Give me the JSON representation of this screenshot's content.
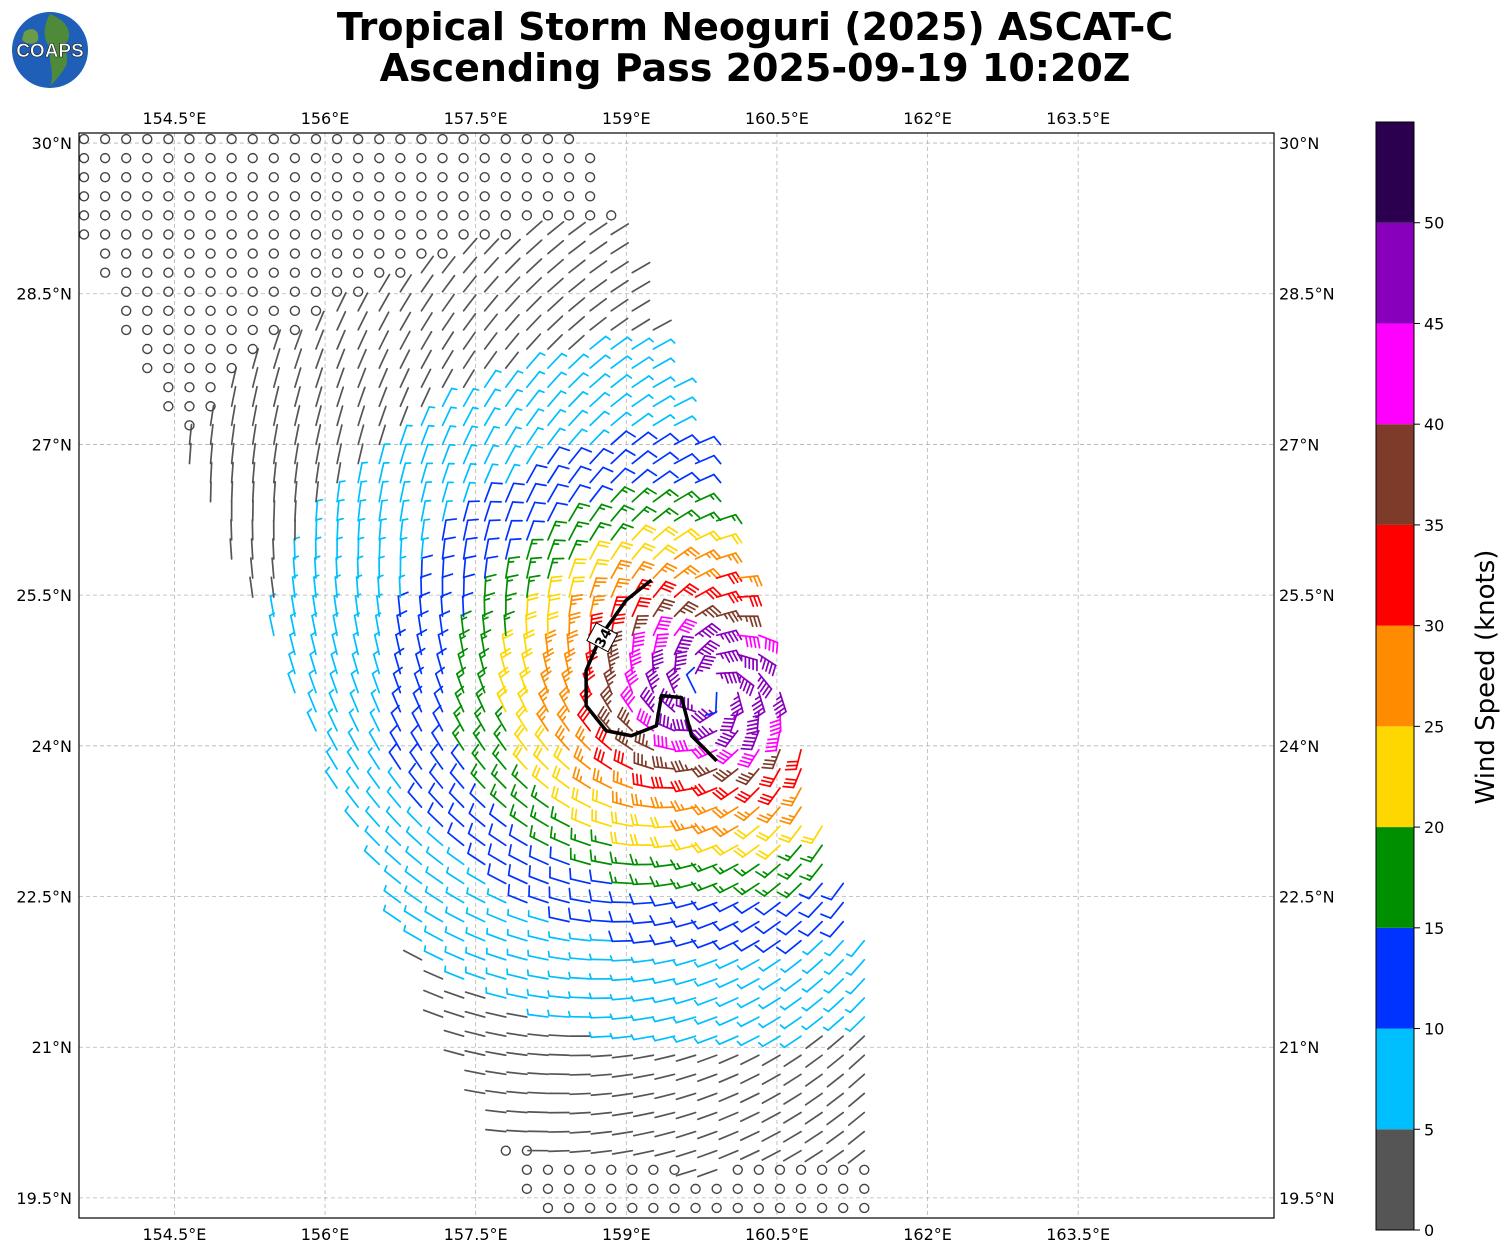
{
  "header": {
    "line1": "Tropical Storm Neoguri (2025) ASCAT-C",
    "line2": "Ascending Pass 2025-09-19 10:20Z"
  },
  "logo": {
    "text": "COAPS",
    "ocean_color": "#1f5fb8",
    "land_color": "#4f8a3a"
  },
  "map": {
    "lon_range": [
      153.55,
      165.45
    ],
    "lat_range": [
      19.3,
      30.1
    ],
    "lon_ticks": [
      "154.5°E",
      "156°E",
      "157.5°E",
      "159°E",
      "160.5°E",
      "162°E",
      "163.5°E"
    ],
    "lon_tick_values": [
      154.5,
      156,
      157.5,
      159,
      160.5,
      162,
      163.5
    ],
    "lat_ticks": [
      "19.5°N",
      "21°N",
      "22.5°N",
      "24°N",
      "25.5°N",
      "27°N",
      "28.5°N",
      "30°N"
    ],
    "lat_tick_values": [
      19.5,
      21,
      22.5,
      24,
      25.5,
      27,
      28.5,
      30
    ],
    "grid": true,
    "storm_center": {
      "lon": 159.85,
      "lat": 24.55
    },
    "contour_label": "34",
    "contour_34kt": [
      [
        159.25,
        25.65
      ],
      [
        159.0,
        25.45
      ],
      [
        158.75,
        25.1
      ],
      [
        158.6,
        24.75
      ],
      [
        158.6,
        24.4
      ],
      [
        158.8,
        24.15
      ],
      [
        159.05,
        24.1
      ],
      [
        159.3,
        24.2
      ],
      [
        159.35,
        24.5
      ],
      [
        159.55,
        24.48
      ],
      [
        159.65,
        24.1
      ],
      [
        159.9,
        23.85
      ]
    ]
  },
  "colorbar": {
    "label": "Wind Speed (knots)",
    "tick_labels": [
      "0",
      "5",
      "10",
      "15",
      "20",
      "25",
      "30",
      "35",
      "40",
      "45",
      "50"
    ],
    "tick_values": [
      0,
      5,
      10,
      15,
      20,
      25,
      30,
      35,
      40,
      45,
      50
    ],
    "bins": [
      {
        "min": 0,
        "max": 5,
        "color": "#555555"
      },
      {
        "min": 5,
        "max": 10,
        "color": "#00bfff"
      },
      {
        "min": 10,
        "max": 15,
        "color": "#0033ff"
      },
      {
        "min": 15,
        "max": 20,
        "color": "#008f00"
      },
      {
        "min": 20,
        "max": 25,
        "color": "#ffd700"
      },
      {
        "min": 25,
        "max": 30,
        "color": "#ff8c00"
      },
      {
        "min": 30,
        "max": 35,
        "color": "#ff0000"
      },
      {
        "min": 35,
        "max": 40,
        "color": "#7f3b2a"
      },
      {
        "min": 40,
        "max": 45,
        "color": "#ff00ff"
      },
      {
        "min": 45,
        "max": 50,
        "color": "#8800bb"
      },
      {
        "min": 50,
        "max": 55,
        "color": "#2a004f"
      }
    ]
  }
}
